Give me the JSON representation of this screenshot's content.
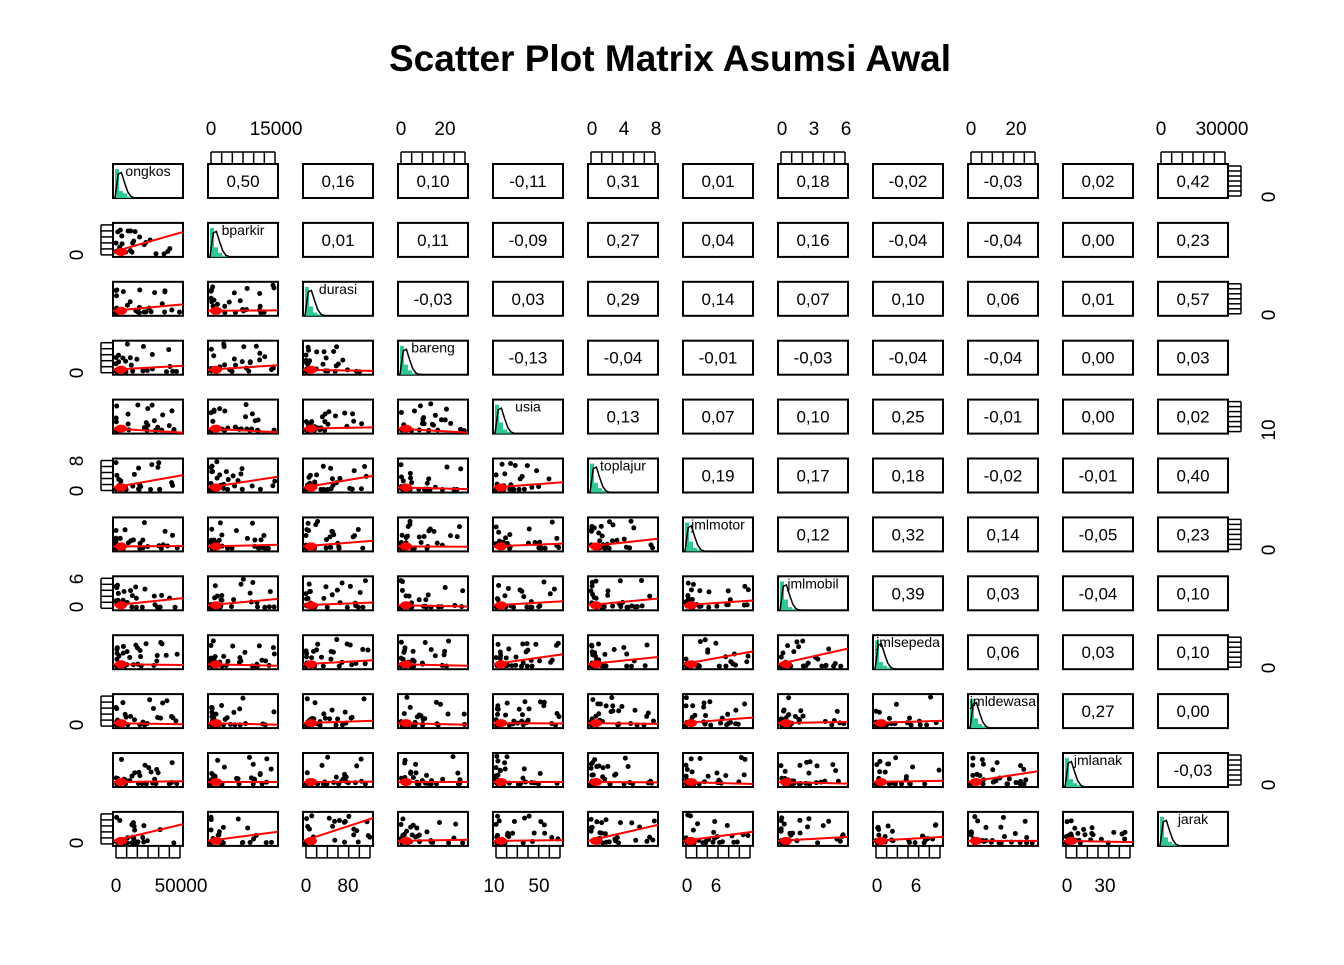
{
  "chart_data": {
    "type": "scatter-matrix",
    "title": "Scatter Plot Matrix Asumsi Awal",
    "variables": [
      "ongkos",
      "bparkir",
      "durasi",
      "bareng",
      "usia",
      "toplajur",
      "jmlmotor",
      "jmlmobil",
      "jmlsepeda",
      "jmldewasa",
      "jmlanak",
      "jarak"
    ],
    "correlations_upper": [
      [
        "0,50",
        "0,16",
        "0,10",
        "-0,11",
        "0,31",
        "0,01",
        "0,18",
        "-0,02",
        "-0,03",
        "0,02",
        "0,42"
      ],
      [
        "0,01",
        "0,11",
        "-0,09",
        "0,27",
        "0,04",
        "0,16",
        "-0,04",
        "-0,04",
        "0,00",
        "0,23"
      ],
      [
        "-0,03",
        "0,03",
        "0,29",
        "0,14",
        "0,07",
        "0,10",
        "0,06",
        "0,01",
        "0,57"
      ],
      [
        "-0,13",
        "-0,04",
        "-0,01",
        "-0,03",
        "-0,04",
        "-0,04",
        "0,00",
        "0,03"
      ],
      [
        "0,13",
        "0,07",
        "0,10",
        "0,25",
        "-0,01",
        "0,00",
        "0,02"
      ],
      [
        "0,19",
        "0,17",
        "0,18",
        "-0,02",
        "-0,01",
        "0,40"
      ],
      [
        "0,12",
        "0,32",
        "0,14",
        "-0,05",
        "0,23"
      ],
      [
        "0,39",
        "0,03",
        "-0,04",
        "0,10"
      ],
      [
        "0,06",
        "0,03",
        "0,10"
      ],
      [
        "0,27",
        "0,00"
      ],
      [
        "-0,03"
      ]
    ],
    "axis_top": [
      {
        "variable": "bparkir",
        "labels": [
          "0",
          "15000"
        ]
      },
      {
        "variable": "bareng",
        "labels": [
          "0",
          "20"
        ]
      },
      {
        "variable": "toplajur",
        "labels": [
          "0",
          "4",
          "8"
        ]
      },
      {
        "variable": "jmlmobil",
        "labels": [
          "0",
          "3",
          "6"
        ]
      },
      {
        "variable": "jmldewasa",
        "labels": [
          "0",
          "20"
        ]
      },
      {
        "variable": "jarak",
        "labels": [
          "0",
          "30000"
        ]
      }
    ],
    "axis_bottom": [
      {
        "variable": "ongkos",
        "labels": [
          "0",
          "50000"
        ]
      },
      {
        "variable": "durasi",
        "labels": [
          "0",
          "80"
        ]
      },
      {
        "variable": "usia",
        "labels": [
          "10",
          "50"
        ]
      },
      {
        "variable": "jmlmotor",
        "labels": [
          "0",
          "6"
        ]
      },
      {
        "variable": "jmlsepeda",
        "labels": [
          "0",
          "6"
        ]
      },
      {
        "variable": "jmlanak",
        "labels": [
          "0",
          "30"
        ]
      }
    ],
    "axis_left": [
      {
        "variable": "bparkir",
        "labels": [
          "0"
        ]
      },
      {
        "variable": "bareng",
        "labels": [
          "0"
        ]
      },
      {
        "variable": "toplajur",
        "labels": [
          "0",
          "8"
        ]
      },
      {
        "variable": "jmlmobil",
        "labels": [
          "0",
          "6"
        ]
      },
      {
        "variable": "jmldewasa",
        "labels": [
          "0"
        ]
      },
      {
        "variable": "jarak",
        "labels": [
          "0"
        ]
      }
    ],
    "axis_right": [
      {
        "variable": "ongkos",
        "labels": [
          "0"
        ]
      },
      {
        "variable": "durasi",
        "labels": [
          "0"
        ]
      },
      {
        "variable": "usia",
        "labels": [
          "10"
        ]
      },
      {
        "variable": "jmlmotor",
        "labels": [
          "0"
        ]
      },
      {
        "variable": "jmlsepeda",
        "labels": [
          "0"
        ]
      },
      {
        "variable": "jmlanak",
        "labels": [
          "0"
        ]
      }
    ],
    "colors": {
      "histogram": "#2EC795",
      "fit_line": "#FF0000",
      "points": "#000000",
      "ellipse": "#FF0000"
    }
  }
}
